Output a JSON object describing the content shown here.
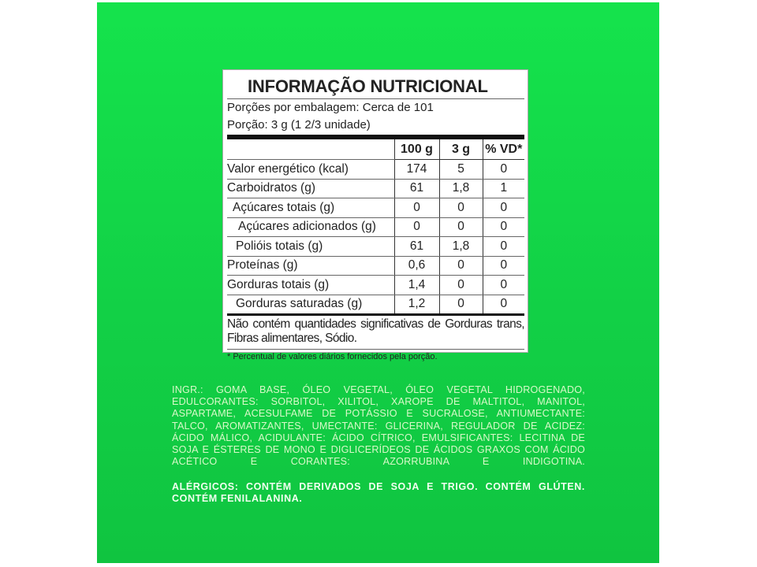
{
  "nutrition": {
    "title": "INFORMAÇÃO NUTRICIONAL",
    "servings_per_package": "Porções por embalagem: Cerca de 101",
    "serving_size": "Porção: 3 g (1 2/3 unidade)",
    "columns": [
      "",
      "100 g",
      "3 g",
      "% VD*"
    ],
    "rows": [
      [
        "Valor energético (kcal)",
        "174",
        "5",
        "0"
      ],
      [
        "Carboidratos (g)",
        "61",
        "1,8",
        "1"
      ],
      [
        "Açúcares totais (g)",
        "0",
        "0",
        "0"
      ],
      [
        "Açúcares adicionados (g)",
        "0",
        "0",
        "0"
      ],
      [
        "Polióis totais (g)",
        "61",
        "1,8",
        "0"
      ],
      [
        "Proteínas (g)",
        "0,6",
        "0",
        "0"
      ],
      [
        "Gorduras totais (g)",
        "1,4",
        "0",
        "0"
      ],
      [
        "Gorduras saturadas (g)",
        "1,2",
        "0",
        "0"
      ]
    ],
    "note": "Não contém quantidades significativas de Gorduras trans, Fibras alimentares, Sódio.",
    "footnote": "* Percentual de valores diários fornecidos pela porção."
  },
  "ingredients": "INGR.: GOMA BASE, ÓLEO VEGETAL, ÓLEO VEGETAL HIDROGENADO, EDULCORANTES: SORBITOL, XILITOL, XAROPE DE MALTITOL, MANITOL, ASPARTAME, ACESULFAME DE POTÁSSIO E SUCRALOSE, ANTIUMECTANTE: TALCO, AROMATIZANTES, UMECTANTE: GLICERINA, REGULADOR DE ACIDEZ: ÁCIDO MÁLICO, ACIDULANTE: ÁCIDO CÍTRICO, EMULSIFICANTES: LECITINA DE SOJA E ÉSTERES DE MONO E DIGLICERÍDEOS DE ÁCIDOS GRAXOS COM ÁCIDO ACÉTICO E CORANTES: AZORRUBINA E INDIGOTINA.",
  "allergens": "ALÉRGICOS: CONTÉM DERIVADOS DE SOJA E TRIGO. CONTÉM GLÚTEN. CONTÉM FENILALANINA.",
  "colors": {
    "background": "#14d848",
    "label": "#ffffff",
    "ink": "#222222"
  }
}
